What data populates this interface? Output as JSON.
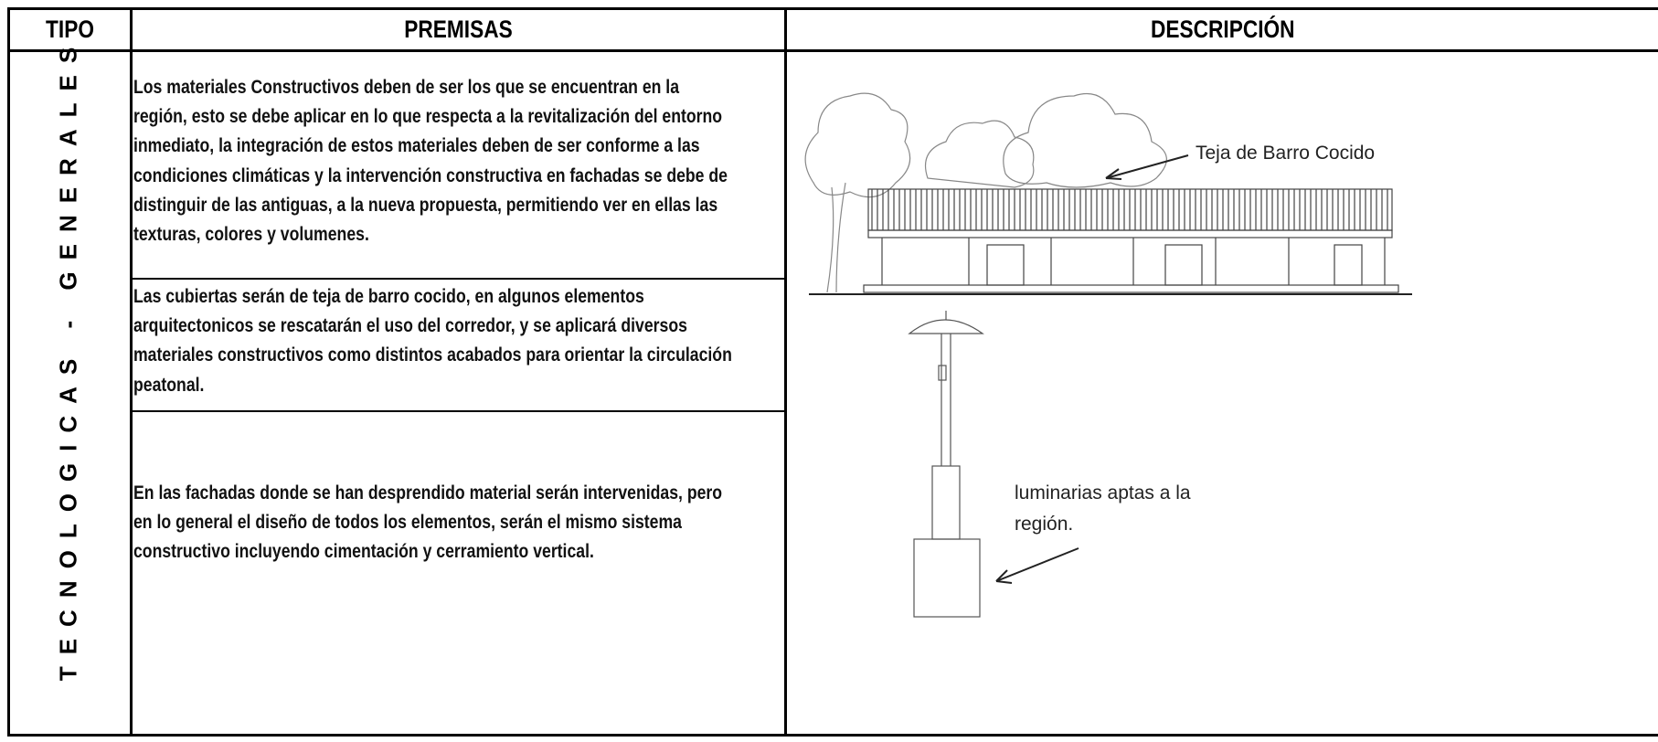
{
  "header": {
    "tipo": "TIPO",
    "premisas": "PREMISAS",
    "descripcion": "DESCRIPCIÓN"
  },
  "tipo_label": "TECNOLOGICAS - GENERALES",
  "premisas": [
    {
      "lines": [
        "Los materiales Constructivos deben de ser los que se encuentran en la",
        "región, esto se debe aplicar en lo que respecta a la revitalización del entorno",
        "inmediato, la integración de estos materiales deben de ser conforme a las",
        "condiciones climáticas y la intervención constructiva en fachadas se debe de",
        "distinguir de las antiguas, a la nueva propuesta, permitiendo ver en ellas las",
        "texturas, colores y volumenes."
      ]
    },
    {
      "lines": [
        "Las cubiertas serán de teja de barro cocido, en algunos elementos",
        "arquitectonicos se rescatarán el uso del corredor, y se aplicará diversos",
        "materiales constructivos como distintos acabados para orientar la circulación",
        "peatonal."
      ]
    },
    {
      "lines": [
        "En las fachadas donde se han desprendido material serán intervenidas, pero",
        "en lo general el diseño de todos los elementos, serán el mismo sistema",
        "constructivo incluyendo cimentación y cerramiento vertical."
      ]
    }
  ],
  "annotations": {
    "roof": "Teja de Barro Cocido",
    "lamp": [
      "luminarias aptas a la",
      "región."
    ]
  }
}
